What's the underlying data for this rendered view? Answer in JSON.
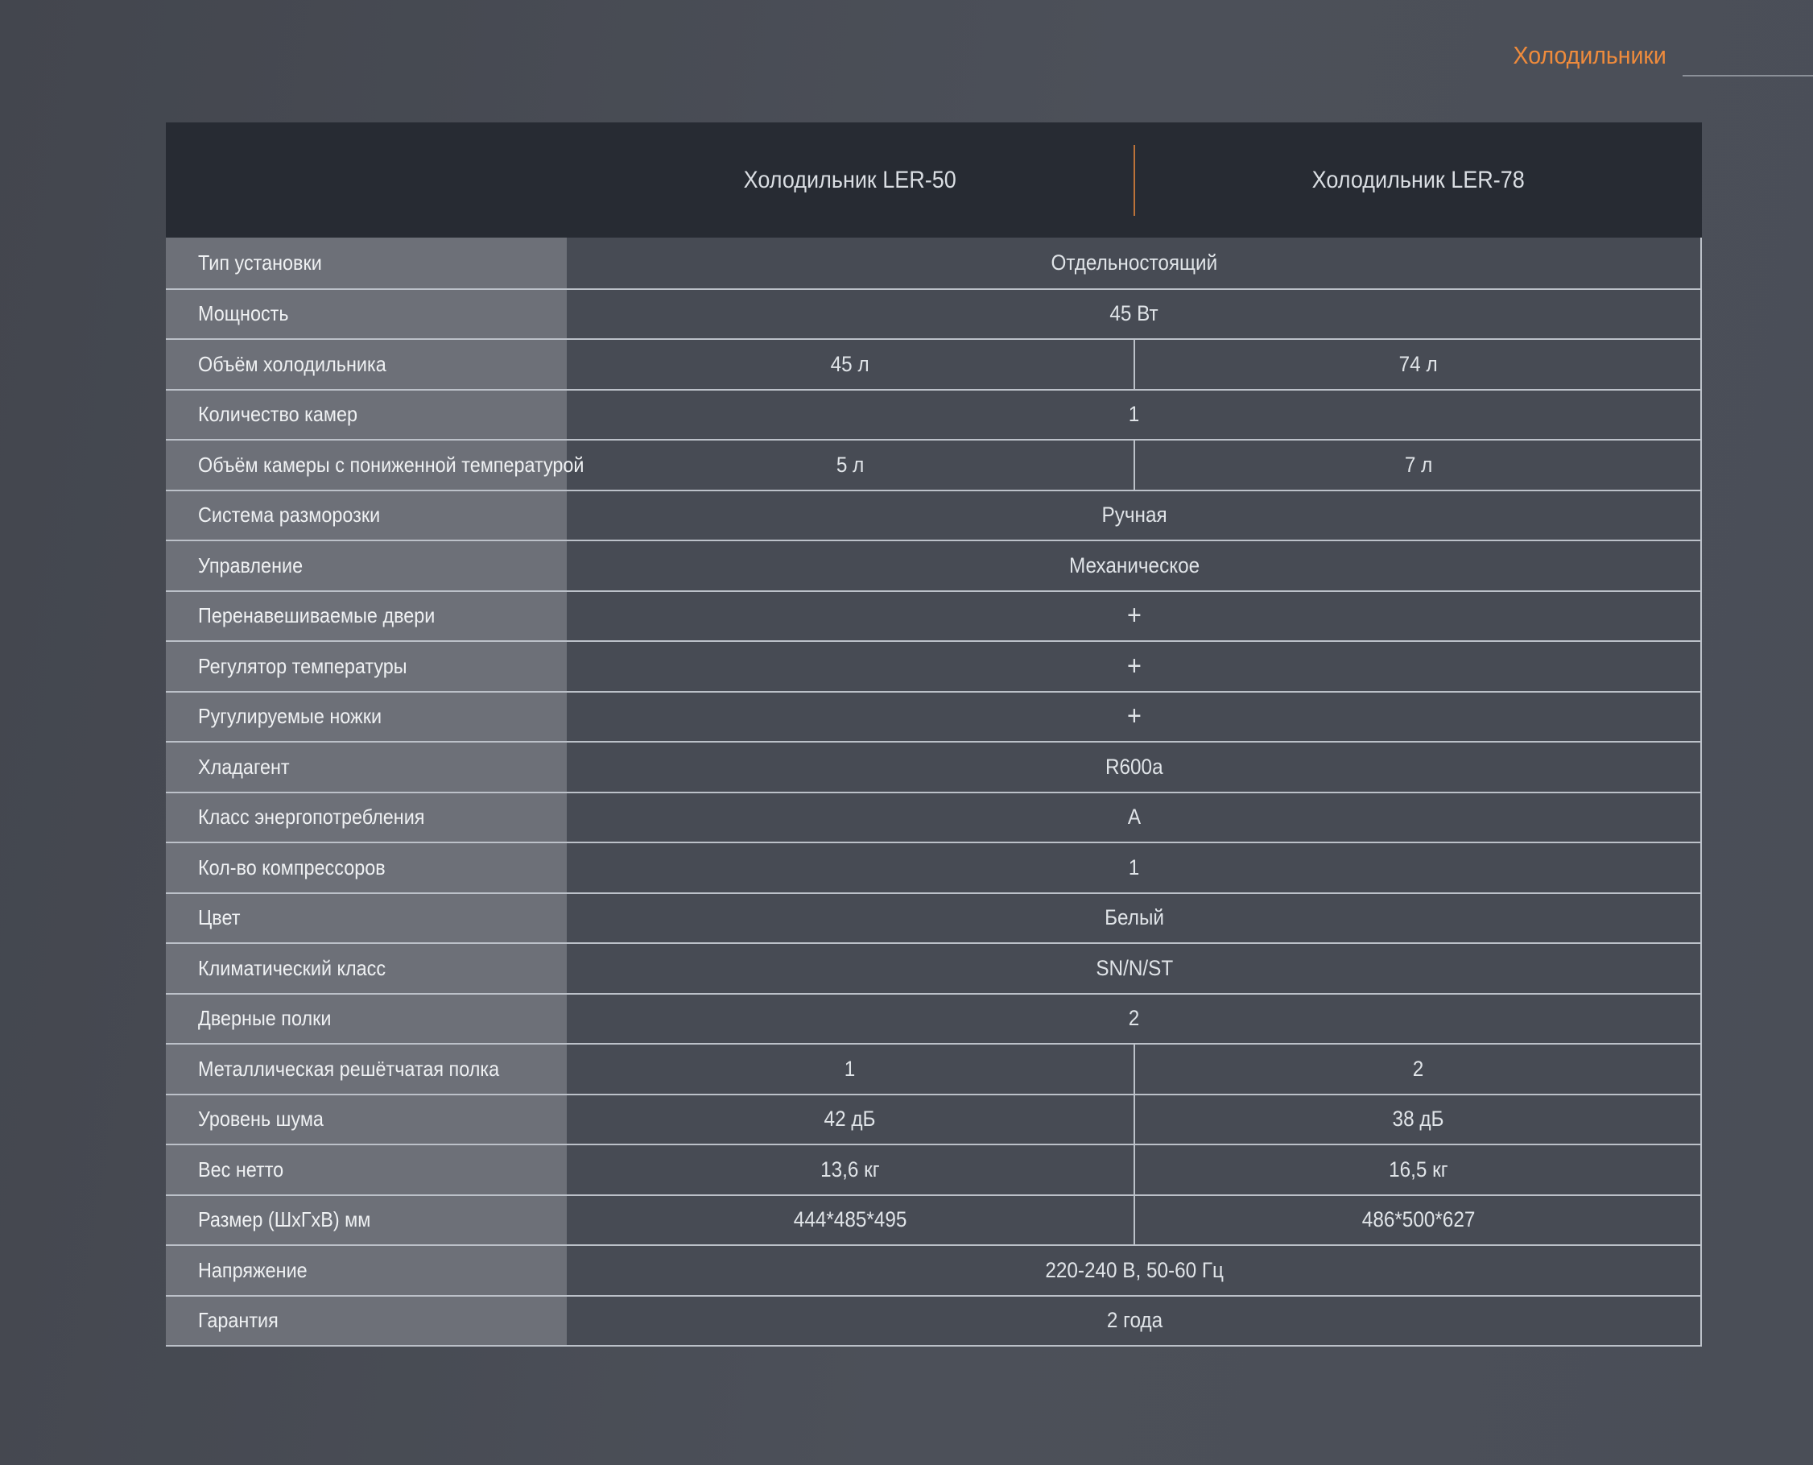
{
  "page": {
    "category_label": "Холодильники",
    "colors": {
      "accent": "#ef8b3c",
      "page_bg": "#4a4e57",
      "header_bg": "#272b33",
      "label_cell_bg": "#6d7078",
      "value_cell_bg": "#474b54",
      "grid_line": "#bcc1c9",
      "rule_line": "#8b9098"
    }
  },
  "table": {
    "products": [
      {
        "name": "Холодильник LER-50"
      },
      {
        "name": "Холодильник LER-78"
      }
    ],
    "rows": [
      {
        "label": "Тип установки",
        "span": "Отдельностоящий"
      },
      {
        "label": "Мощность",
        "span": "45 Вт"
      },
      {
        "label": "Объём холодильника",
        "values": [
          "45 л",
          "74 л"
        ]
      },
      {
        "label": "Количество камер",
        "span": "1"
      },
      {
        "label": "Объём камеры с пониженной температурой",
        "values": [
          "5 л",
          "7 л"
        ]
      },
      {
        "label": "Система разморозки",
        "span": "Ручная"
      },
      {
        "label": "Управление",
        "span": "Механическое"
      },
      {
        "label": "Перенавешиваемые двери",
        "span": "+"
      },
      {
        "label": "Регулятор температуры",
        "span": "+"
      },
      {
        "label": "Ругулируемые ножки",
        "span": "+"
      },
      {
        "label": "Хладагент",
        "span": "R600a"
      },
      {
        "label": "Класс энергопотребления",
        "span": "A"
      },
      {
        "label": "Кол-во компрессоров",
        "span": "1"
      },
      {
        "label": "Цвет",
        "span": "Белый"
      },
      {
        "label": "Климатический класс",
        "span": "SN/N/ST"
      },
      {
        "label": "Дверные полки",
        "span": "2"
      },
      {
        "label": "Металлическая решётчатая полка",
        "values": [
          "1",
          "2"
        ]
      },
      {
        "label": "Уровень шума",
        "values": [
          "42 дБ",
          "38 дБ"
        ]
      },
      {
        "label": "Вес нетто",
        "values": [
          "13,6 кг",
          "16,5 кг"
        ]
      },
      {
        "label": "Размер (ШхГхВ) мм",
        "values": [
          "444*485*495",
          "486*500*627"
        ]
      },
      {
        "label": "Напряжение",
        "span": "220-240 В, 50-60 Гц"
      },
      {
        "label": "Гарантия",
        "span": "2 года"
      }
    ]
  }
}
